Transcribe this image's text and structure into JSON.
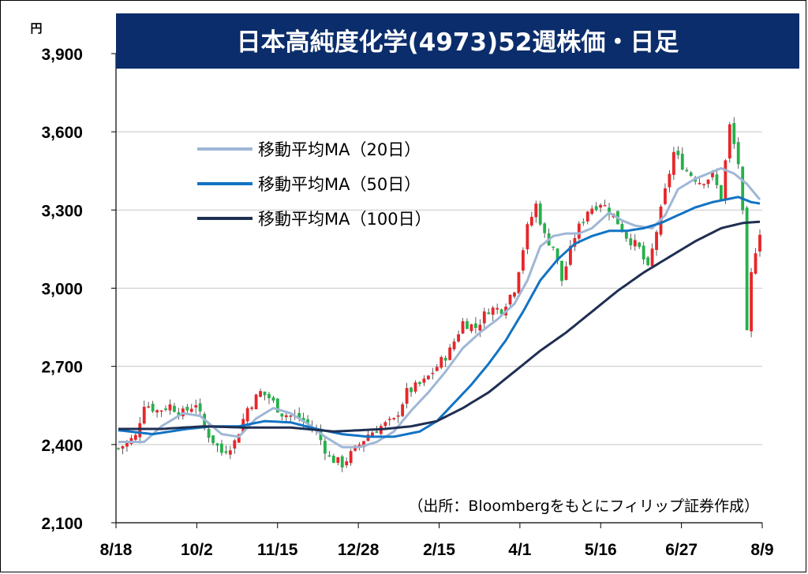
{
  "chart_data": {
    "type": "candlestick",
    "title": "日本高純度化学(4973)52週株価・日足",
    "unit": "円",
    "source": "（出所：Bloombergをもとにフィリップ証券作成）",
    "y_ticks": [
      "2,100",
      "2,400",
      "2,700",
      "3,000",
      "3,300",
      "3,600",
      "3,900"
    ],
    "y_tick_values": [
      2100,
      2400,
      2700,
      3000,
      3300,
      3600,
      3900
    ],
    "ylim": [
      2100,
      3900
    ],
    "x_ticks": [
      "8/18",
      "10/2",
      "11/15",
      "12/28",
      "2/15",
      "4/1",
      "5/16",
      "6/27",
      "8/9"
    ],
    "grid": true,
    "legend_placement": "top-left",
    "legend": [
      {
        "name": "移動平均MA（20日）",
        "color": "#9fb7d6"
      },
      {
        "name": "移動平均MA（50日）",
        "color": "#1273c4"
      },
      {
        "name": "移動平均MA（100日）",
        "color": "#1f2f52"
      }
    ],
    "colors": {
      "up": "#e8262a",
      "down": "#26b04b",
      "title_bg": "#0b2d6b"
    },
    "price_path": [
      [
        0,
        2385
      ],
      [
        4,
        2430
      ],
      [
        6,
        2560
      ],
      [
        9,
        2530
      ],
      [
        12,
        2550
      ],
      [
        15,
        2520
      ],
      [
        18,
        2560
      ],
      [
        20,
        2460
      ],
      [
        24,
        2370
      ],
      [
        27,
        2410
      ],
      [
        30,
        2540
      ],
      [
        33,
        2600
      ],
      [
        35,
        2580
      ],
      [
        38,
        2520
      ],
      [
        42,
        2500
      ],
      [
        46,
        2450
      ],
      [
        49,
        2350
      ],
      [
        52,
        2325
      ],
      [
        55,
        2380
      ],
      [
        58,
        2440
      ],
      [
        61,
        2470
      ],
      [
        64,
        2490
      ],
      [
        67,
        2600
      ],
      [
        71,
        2640
      ],
      [
        74,
        2700
      ],
      [
        77,
        2760
      ],
      [
        80,
        2870
      ],
      [
        83,
        2850
      ],
      [
        86,
        2920
      ],
      [
        89,
        2920
      ],
      [
        92,
        3000
      ],
      [
        95,
        3230
      ],
      [
        97,
        3320
      ],
      [
        99,
        3200
      ],
      [
        101,
        3160
      ],
      [
        103,
        3030
      ],
      [
        106,
        3200
      ],
      [
        109,
        3300
      ],
      [
        112,
        3330
      ],
      [
        115,
        3280
      ],
      [
        118,
        3200
      ],
      [
        121,
        3150
      ],
      [
        123,
        3070
      ],
      [
        125,
        3220
      ],
      [
        127,
        3370
      ],
      [
        129,
        3520
      ],
      [
        132,
        3450
      ],
      [
        135,
        3410
      ],
      [
        138,
        3430
      ],
      [
        140,
        3350
      ],
      [
        142,
        3620
      ],
      [
        144,
        3480
      ],
      [
        145,
        3280
      ],
      [
        146,
        2820
      ],
      [
        147,
        3050
      ],
      [
        148,
        3150
      ],
      [
        149,
        3220
      ]
    ],
    "ma20": [
      [
        0,
        2410
      ],
      [
        6,
        2410
      ],
      [
        10,
        2470
      ],
      [
        15,
        2520
      ],
      [
        19,
        2510
      ],
      [
        24,
        2440
      ],
      [
        28,
        2430
      ],
      [
        32,
        2500
      ],
      [
        36,
        2540
      ],
      [
        40,
        2520
      ],
      [
        44,
        2480
      ],
      [
        48,
        2430
      ],
      [
        52,
        2390
      ],
      [
        56,
        2390
      ],
      [
        60,
        2410
      ],
      [
        64,
        2450
      ],
      [
        68,
        2530
      ],
      [
        72,
        2600
      ],
      [
        76,
        2680
      ],
      [
        80,
        2770
      ],
      [
        84,
        2830
      ],
      [
        88,
        2880
      ],
      [
        92,
        2940
      ],
      [
        95,
        3030
      ],
      [
        98,
        3160
      ],
      [
        101,
        3200
      ],
      [
        104,
        3210
      ],
      [
        107,
        3210
      ],
      [
        110,
        3230
      ],
      [
        114,
        3290
      ],
      [
        117,
        3260
      ],
      [
        120,
        3240
      ],
      [
        124,
        3230
      ],
      [
        127,
        3280
      ],
      [
        130,
        3380
      ],
      [
        134,
        3420
      ],
      [
        137,
        3440
      ],
      [
        140,
        3460
      ],
      [
        143,
        3440
      ],
      [
        146,
        3400
      ],
      [
        149,
        3340
      ]
    ],
    "ma50": [
      [
        0,
        2455
      ],
      [
        8,
        2440
      ],
      [
        16,
        2460
      ],
      [
        22,
        2470
      ],
      [
        28,
        2470
      ],
      [
        34,
        2490
      ],
      [
        40,
        2485
      ],
      [
        46,
        2460
      ],
      [
        52,
        2440
      ],
      [
        58,
        2430
      ],
      [
        64,
        2430
      ],
      [
        70,
        2450
      ],
      [
        74,
        2490
      ],
      [
        78,
        2560
      ],
      [
        82,
        2630
      ],
      [
        86,
        2710
      ],
      [
        90,
        2800
      ],
      [
        94,
        2910
      ],
      [
        98,
        3030
      ],
      [
        102,
        3110
      ],
      [
        106,
        3170
      ],
      [
        110,
        3200
      ],
      [
        114,
        3220
      ],
      [
        118,
        3220
      ],
      [
        122,
        3230
      ],
      [
        126,
        3250
      ],
      [
        130,
        3280
      ],
      [
        134,
        3310
      ],
      [
        138,
        3330
      ],
      [
        141,
        3340
      ],
      [
        144,
        3350
      ],
      [
        147,
        3330
      ],
      [
        149,
        3325
      ]
    ],
    "ma100": [
      [
        0,
        2460
      ],
      [
        10,
        2460
      ],
      [
        20,
        2470
      ],
      [
        30,
        2465
      ],
      [
        40,
        2465
      ],
      [
        50,
        2450
      ],
      [
        56,
        2455
      ],
      [
        62,
        2460
      ],
      [
        68,
        2470
      ],
      [
        74,
        2490
      ],
      [
        80,
        2540
      ],
      [
        86,
        2600
      ],
      [
        92,
        2680
      ],
      [
        98,
        2760
      ],
      [
        104,
        2830
      ],
      [
        110,
        2910
      ],
      [
        116,
        2990
      ],
      [
        122,
        3060
      ],
      [
        128,
        3120
      ],
      [
        134,
        3180
      ],
      [
        140,
        3230
      ],
      [
        145,
        3250
      ],
      [
        149,
        3255
      ]
    ]
  }
}
